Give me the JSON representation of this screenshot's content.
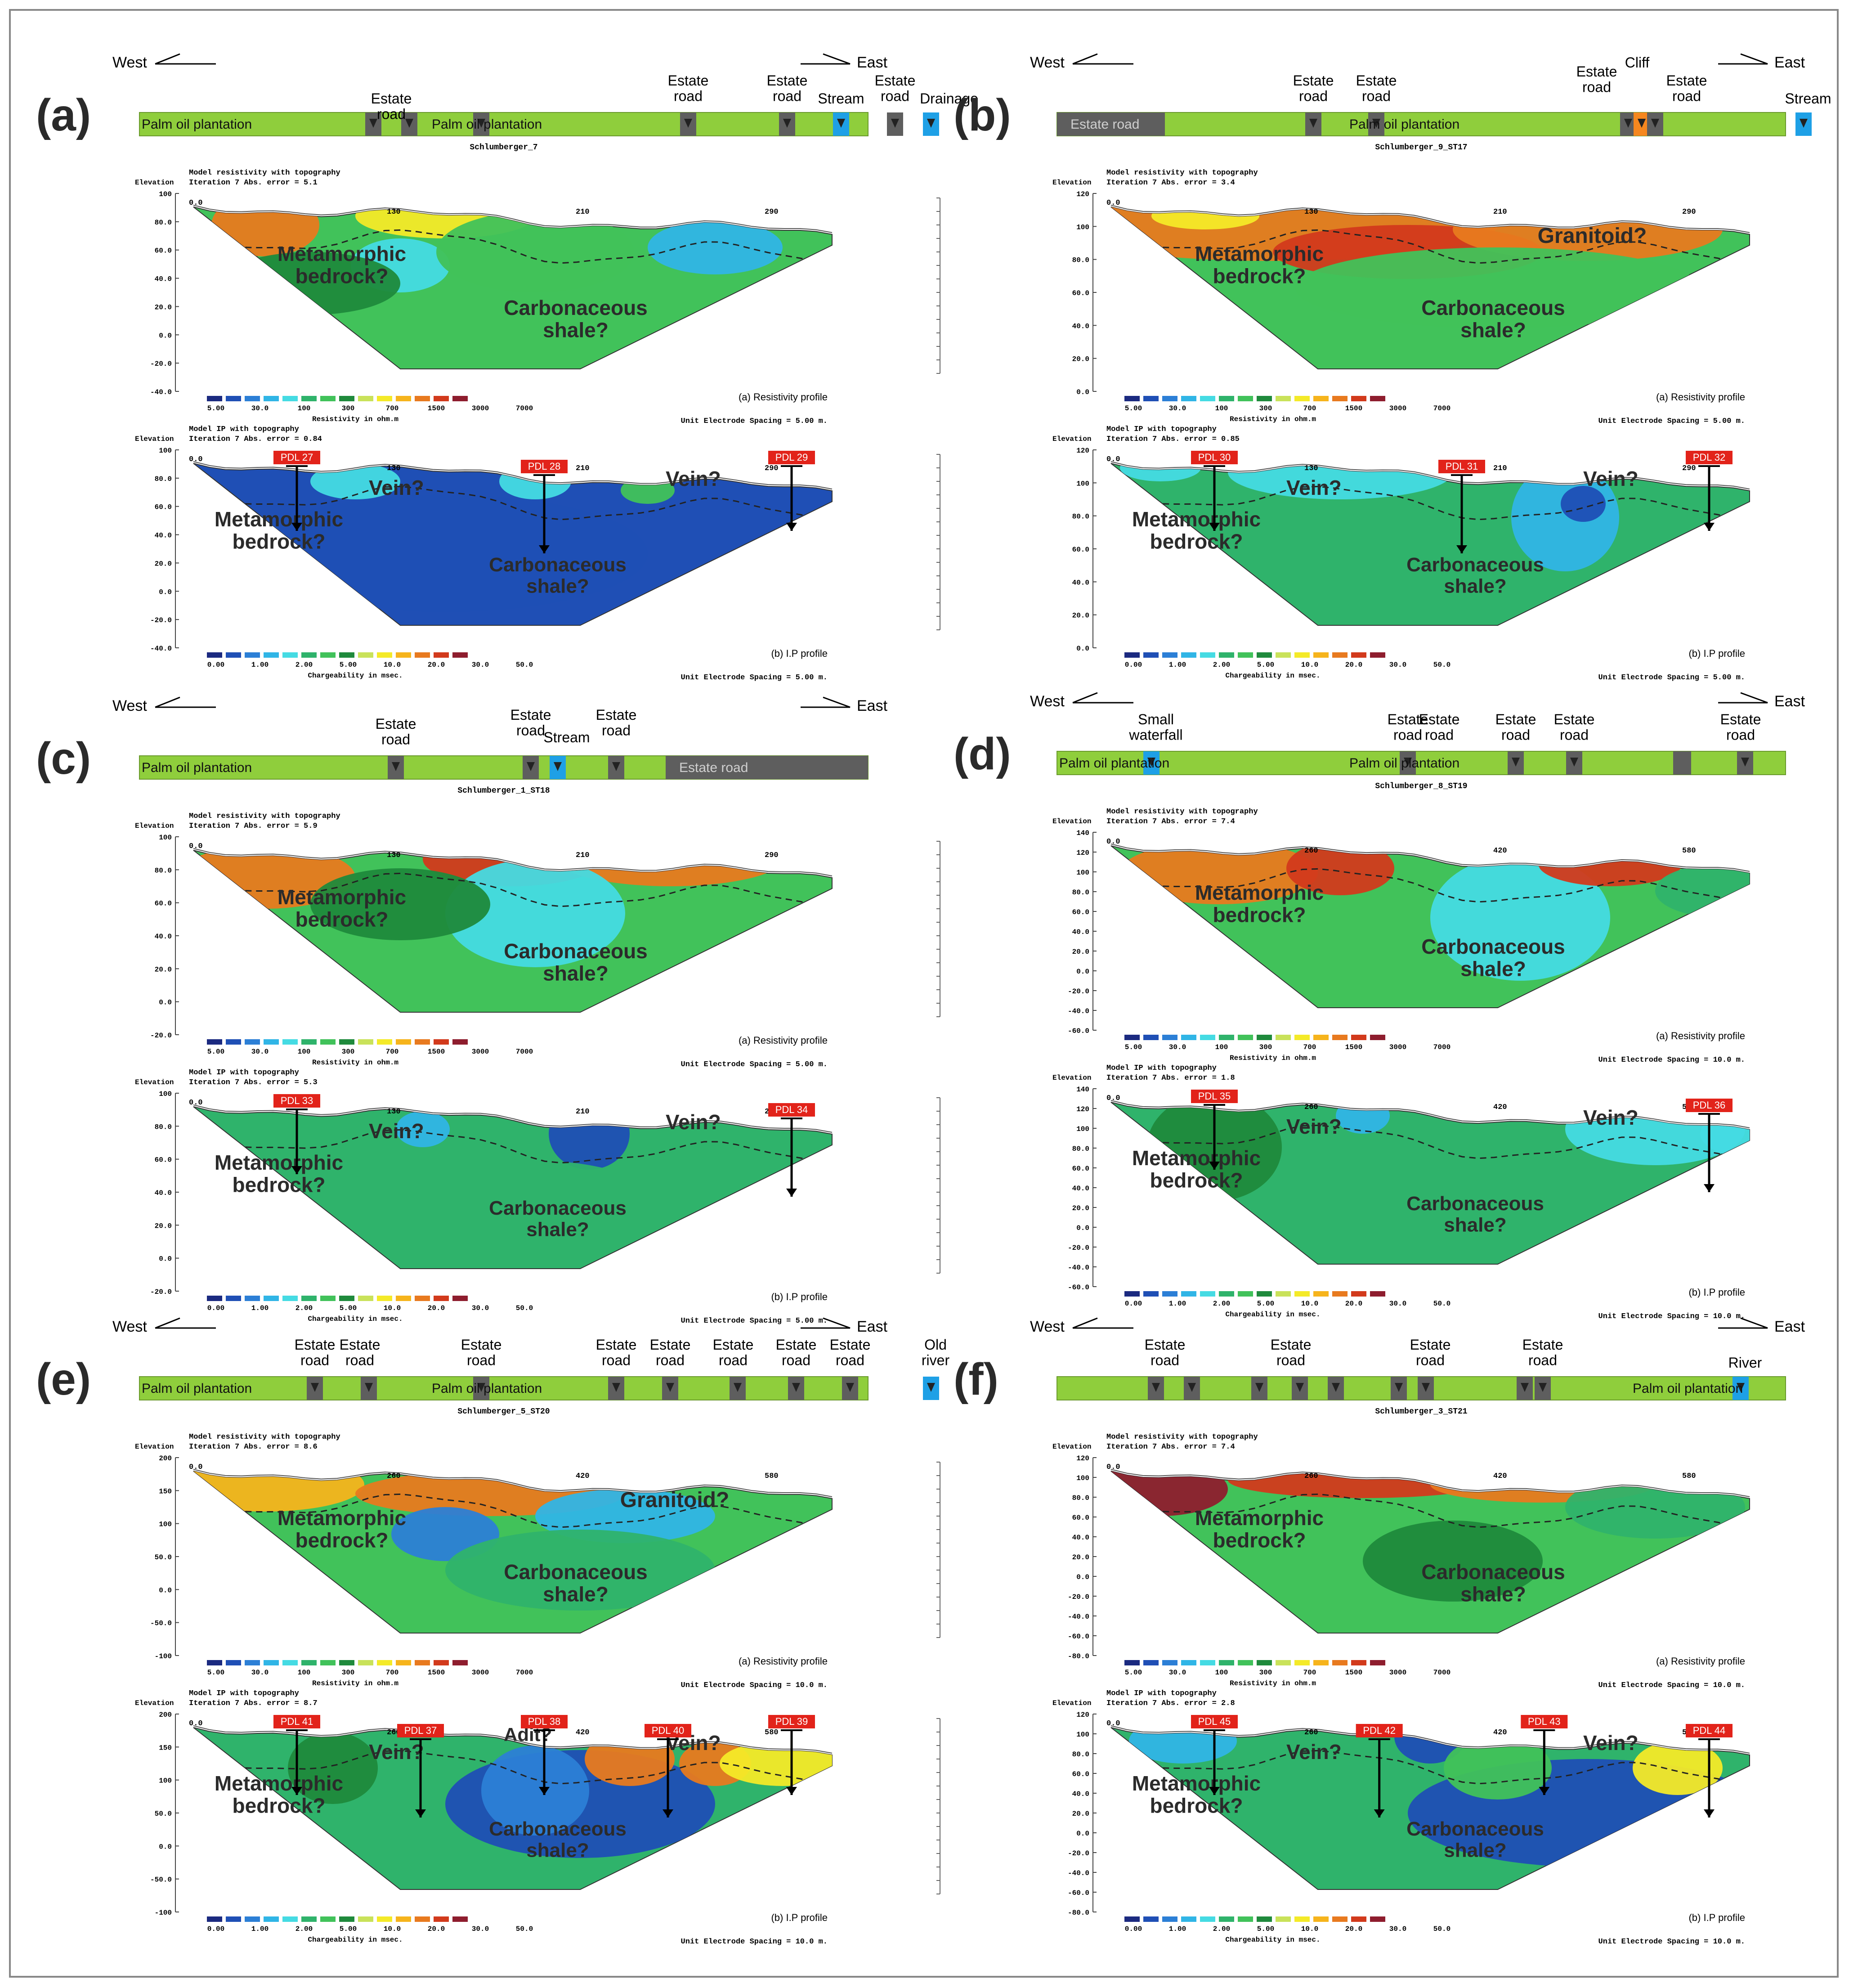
{
  "colors": {
    "bar_green": "#8fce3c",
    "road_grey": "#5e5e5e",
    "stream_blue": "#1ea0e6",
    "cliff_orange": "#f5871f",
    "pdl_red": "#e2231a",
    "res_palette": [
      "#1b2a80",
      "#1f4fb5",
      "#2c7fd6",
      "#30b5e6",
      "#45dbe3",
      "#2fb36b",
      "#41c25a",
      "#1f8a3c",
      "#c9e25a",
      "#f4ea28",
      "#f6b41c",
      "#e87a1f",
      "#d23a1c",
      "#8e1d2e"
    ],
    "ip_palette": [
      "#1b2a80",
      "#1f4fb5",
      "#2c7fd6",
      "#30b5e6",
      "#45dbe3",
      "#2fb36b",
      "#41c25a",
      "#1f8a3c",
      "#c9e25a",
      "#f4ea28",
      "#f6b41c",
      "#e87a1f",
      "#d23a1c",
      "#8e1d2e"
    ]
  },
  "common": {
    "west": "West",
    "east": "East",
    "elevation": "Elevation",
    "res_title": "Model resistivity with topography",
    "ip_title": "Model IP with topography",
    "res_unit": "Resistivity in ohm.m",
    "ip_unit": "Chargeability in msec.",
    "res_ticks": [
      "5.00",
      "30.0",
      "100",
      "300",
      "700",
      "1500",
      "3000",
      "7000"
    ],
    "ip_ticks": [
      "0.00",
      "1.00",
      "2.00",
      "5.00",
      "10.0",
      "20.0",
      "30.0",
      "50.0"
    ],
    "res_caption": "(a) Resistivity profile",
    "ip_caption": "(b) I.P profile",
    "metamorphic": "Metamorphic bedrock?",
    "carbonaceous": "Carbonaceous shale?",
    "vein": "Vein?",
    "granitoid": "Granitoid?",
    "adit": "Adit?"
  },
  "panels": [
    {
      "id": "a",
      "label": "(a)",
      "line": "Schlumberger_7",
      "res_iter": "Iteration 7 Abs. error = 5.1",
      "ip_iter": "Iteration 7 Abs. error = 0.84",
      "spacing": "Unit Electrode Spacing = 5.00 m.",
      "res_elev": [
        "100",
        "80.0",
        "60.0",
        "40.0",
        "20.0",
        "0.0",
        "-20.0",
        "-40.0"
      ],
      "ip_elev": [
        "100",
        "80.0",
        "60.0",
        "40.0",
        "20.0",
        "0.0",
        "-20.0",
        "-40.0"
      ],
      "stations": [
        "0.0",
        "130",
        "210",
        "290"
      ],
      "bar": [
        "Palm oil plantation",
        "Palm oil plantation"
      ],
      "top_labels": [
        "Estate road",
        "Estate road",
        "Estate road",
        "Stream",
        "Estate road",
        "Drainage"
      ],
      "pdl": [
        "PDL 27",
        "PDL 28",
        "PDL 29"
      ]
    },
    {
      "id": "b",
      "label": "(b)",
      "line": "Schlumberger_9_ST17",
      "res_iter": "Iteration 7 Abs. error = 3.4",
      "ip_iter": "Iteration 7 Abs. error = 0.85",
      "spacing": "Unit Electrode Spacing = 5.00 m.",
      "res_elev": [
        "120",
        "100",
        "80.0",
        "60.0",
        "40.0",
        "20.0",
        "0.0"
      ],
      "ip_elev": [
        "120",
        "100",
        "80.0",
        "60.0",
        "40.0",
        "20.0",
        "0.0"
      ],
      "stations": [
        "0.0",
        "130",
        "210",
        "290"
      ],
      "bar": [
        "Estate road",
        "Palm oil plantation"
      ],
      "top_labels": [
        "Estate road",
        "Estate road",
        "Estate road",
        "Cliff",
        "Estate road",
        "Stream"
      ],
      "pdl": [
        "PDL 30",
        "PDL 31",
        "PDL 32"
      ]
    },
    {
      "id": "c",
      "label": "(c)",
      "line": "Schlumberger_1_ST18",
      "res_iter": "Iteration 7 Abs. error = 5.9",
      "ip_iter": "Iteration 7 Abs. error = 5.3",
      "spacing": "Unit Electrode Spacing = 5.00 m.",
      "res_elev": [
        "100",
        "80.0",
        "60.0",
        "40.0",
        "20.0",
        "0.0",
        "-20.0"
      ],
      "ip_elev": [
        "100",
        "80.0",
        "60.0",
        "40.0",
        "20.0",
        "0.0",
        "-20.0"
      ],
      "stations": [
        "0.0",
        "130",
        "210",
        "290"
      ],
      "bar": [
        "Palm oil plantation",
        "Estate road"
      ],
      "top_labels": [
        "Estate road",
        "Estate road",
        "Stream",
        "Estate road"
      ],
      "pdl": [
        "PDL 33",
        "PDL 34"
      ]
    },
    {
      "id": "d",
      "label": "(d)",
      "line": "Schlumberger_8_ST19",
      "res_iter": "Iteration 7 Abs. error = 7.4",
      "ip_iter": "Iteration 7 Abs. error = 1.8",
      "spacing": "Unit Electrode Spacing = 10.0 m.",
      "res_elev": [
        "140",
        "120",
        "100",
        "80.0",
        "60.0",
        "40.0",
        "20.0",
        "0.0",
        "-20.0",
        "-40.0",
        "-60.0"
      ],
      "ip_elev": [
        "140",
        "120",
        "100",
        "80.0",
        "60.0",
        "40.0",
        "20.0",
        "0.0",
        "-20.0",
        "-40.0",
        "-60.0"
      ],
      "stations": [
        "0.0",
        "260",
        "420",
        "580"
      ],
      "bar": [
        "Palm oil plantation",
        "Palm oil plantation"
      ],
      "top_labels": [
        "Small waterfall",
        "Estate road",
        "Estate road",
        "Estate road",
        "Estate road",
        "Estate road"
      ],
      "pdl": [
        "PDL 35",
        "PDL 36"
      ]
    },
    {
      "id": "e",
      "label": "(e)",
      "line": "Schlumberger_5_ST20",
      "res_iter": "Iteration 7 Abs. error = 8.6",
      "ip_iter": "Iteration 7 Abs. error = 8.7",
      "spacing": "Unit Electrode Spacing = 10.0 m.",
      "res_elev": [
        "200",
        "150",
        "100",
        "50.0",
        "0.0",
        "-50.0",
        "-100"
      ],
      "ip_elev": [
        "200",
        "150",
        "100",
        "50.0",
        "0.0",
        "-50.0",
        "-100"
      ],
      "stations": [
        "0.0",
        "260",
        "420",
        "580"
      ],
      "bar": [
        "Palm oil plantation",
        "Palm oil plantation"
      ],
      "top_labels": [
        "Estate road",
        "Estate road",
        "Estate road",
        "Estate road",
        "Estate road",
        "Estate road",
        "Estate road",
        "Estate road",
        "Old river"
      ],
      "pdl": [
        "PDL 41",
        "PDL 37",
        "PDL 38",
        "PDL 40",
        "PDL 39"
      ]
    },
    {
      "id": "f",
      "label": "(f)",
      "line": "Schlumberger_3_ST21",
      "res_iter": "Iteration 7 Abs. error = 7.4",
      "ip_iter": "Iteration 7 Abs. error = 2.8",
      "spacing": "Unit Electrode Spacing = 10.0 m.",
      "res_elev": [
        "120",
        "100",
        "80.0",
        "60.0",
        "40.0",
        "20.0",
        "0.0",
        "-20.0",
        "-40.0",
        "-60.0",
        "-80.0"
      ],
      "ip_elev": [
        "120",
        "100",
        "80.0",
        "60.0",
        "40.0",
        "20.0",
        "0.0",
        "-20.0",
        "-40.0",
        "-60.0",
        "-80.0"
      ],
      "stations": [
        "0.0",
        "260",
        "420",
        "580"
      ],
      "bar": [
        "Palm oil plantation"
      ],
      "top_labels": [
        "Estate road",
        "Estate road",
        "Estate road",
        "Estate road",
        "River"
      ],
      "pdl": [
        "PDL 45",
        "PDL 42",
        "PDL 43",
        "PDL 44"
      ]
    }
  ]
}
